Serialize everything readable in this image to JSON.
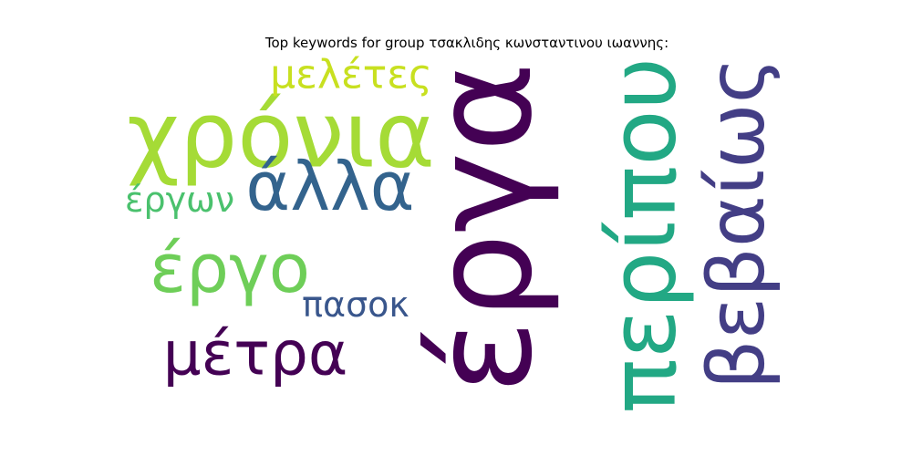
{
  "chart_data": {
    "type": "wordcloud",
    "title": "Top keywords for group τσακλιδης κωνσταντινου ιωαννης:",
    "words": [
      {
        "text": "έργα",
        "color": "#440154"
      },
      {
        "text": "χρόνια",
        "color": "#a5db36"
      },
      {
        "text": "περίπου",
        "color": "#22a884"
      },
      {
        "text": "βεβαίως",
        "color": "#433e85"
      },
      {
        "text": "άλλα",
        "color": "#33638d"
      },
      {
        "text": "έργο",
        "color": "#6ece58"
      },
      {
        "text": "μέτρα",
        "color": "#440154"
      },
      {
        "text": "μελέτες",
        "color": "#c8e020"
      },
      {
        "text": "έργων",
        "color": "#4ac16d"
      },
      {
        "text": "πασοκ",
        "color": "#39568c"
      }
    ]
  }
}
